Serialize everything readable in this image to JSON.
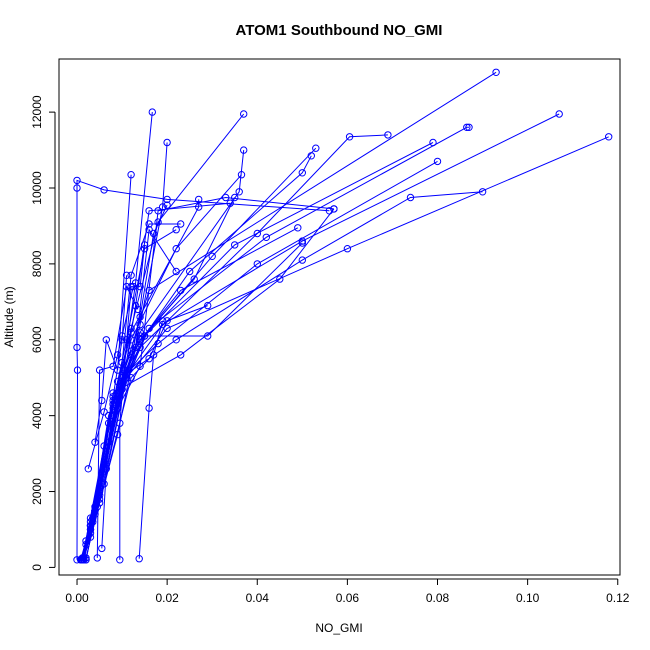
{
  "chart_data": {
    "type": "line",
    "title": "ATOM1 Southbound NO_GMI",
    "xlabel": "NO_GMI",
    "ylabel": "Altitude (m)",
    "xlim": [
      -0.004,
      0.1205
    ],
    "ylim": [
      -200,
      13400
    ],
    "xticks": [
      0.0,
      0.02,
      0.04,
      0.06,
      0.08,
      0.1,
      0.12
    ],
    "xtick_labels": [
      "0.00",
      "0.02",
      "0.04",
      "0.06",
      "0.08",
      "0.10",
      "0.12"
    ],
    "yticks": [
      0,
      2000,
      4000,
      6000,
      8000,
      10000,
      12000
    ],
    "ytick_labels": [
      "0",
      "2000",
      "4000",
      "6000",
      "8000",
      "10000",
      "12000"
    ],
    "grid": false,
    "legend": "none",
    "color": "#0000ff",
    "marker": "open-circle",
    "profiles": [
      {
        "x": [
          0.001,
          0.002,
          0.005,
          0.01,
          0.016,
          0.093
        ],
        "y": [
          200,
          600,
          2100,
          5000,
          7300,
          13050
        ]
      },
      {
        "x": [
          0.001,
          0.003,
          0.009,
          0.014,
          0.019,
          0.02
        ],
        "y": [
          200,
          800,
          3500,
          6400,
          9500,
          11200
        ]
      },
      {
        "x": [
          0.0015,
          0.0035,
          0.008,
          0.012,
          0.018,
          0.037
        ],
        "y": [
          250,
          1200,
          4300,
          6300,
          9100,
          11950
        ]
      },
      {
        "x": [
          0.001,
          0.004,
          0.009,
          0.013,
          0.0167
        ],
        "y": [
          200,
          1500,
          4200,
          7500,
          12000
        ]
      },
      {
        "x": [
          0.002,
          0.005,
          0.01,
          0.014,
          0.036,
          0.037
        ],
        "y": [
          200,
          2000,
          4800,
          6200,
          9900,
          11000
        ]
      },
      {
        "x": [
          0.001,
          0.003,
          0.007,
          0.012,
          0.022,
          0.0365
        ],
        "y": [
          200,
          900,
          3300,
          6000,
          8400,
          10350
        ]
      },
      {
        "x": [
          0.0012,
          0.003,
          0.008,
          0.012,
          0.025,
          0.05,
          0.052
        ],
        "y": [
          250,
          1000,
          4000,
          5600,
          7800,
          10400,
          10850
        ]
      },
      {
        "x": [
          0.0015,
          0.004,
          0.009,
          0.015,
          0.03,
          0.053
        ],
        "y": [
          200,
          1400,
          4500,
          6100,
          8200,
          11050
        ]
      },
      {
        "x": [
          0.001,
          0.0035,
          0.0085,
          0.014,
          0.04,
          0.0605,
          0.069
        ],
        "y": [
          200,
          1300,
          4100,
          5800,
          8800,
          11350,
          11400
        ]
      },
      {
        "x": [
          0.0015,
          0.0045,
          0.009,
          0.015,
          0.035,
          0.079
        ],
        "y": [
          250,
          1600,
          4600,
          6100,
          8500,
          11200
        ]
      },
      {
        "x": [
          0.0012,
          0.004,
          0.01,
          0.016,
          0.042,
          0.0865,
          0.087
        ],
        "y": [
          200,
          1500,
          4700,
          6300,
          8700,
          11600,
          11600
        ]
      },
      {
        "x": [
          0.001,
          0.004,
          0.01,
          0.019,
          0.05,
          0.107
        ],
        "y": [
          200,
          1500,
          4900,
          6400,
          8600,
          11950
        ]
      },
      {
        "x": [
          0.0015,
          0.005,
          0.011,
          0.02,
          0.06,
          0.118
        ],
        "y": [
          200,
          1800,
          5000,
          6300,
          8400,
          11350
        ]
      },
      {
        "x": [
          0.001,
          0.004,
          0.011,
          0.022,
          0.05,
          0.074,
          0.09
        ],
        "y": [
          200,
          1500,
          5100,
          6000,
          8100,
          9750,
          9900
        ]
      },
      {
        "x": [
          0.001,
          0.003,
          0.009,
          0.018,
          0.04,
          0.08
        ],
        "y": [
          200,
          1100,
          4900,
          5900,
          8000,
          10700
        ]
      },
      {
        "x": [
          0.0012,
          0.0035,
          0.008,
          0.023,
          0.045,
          0.057
        ],
        "y": [
          200,
          1300,
          4600,
          5600,
          7600,
          9450
        ]
      },
      {
        "x": [
          0.0008,
          0.003,
          0.008,
          0.014,
          0.029,
          0.05
        ],
        "y": [
          200,
          1100,
          4400,
          6100,
          6100,
          8550
        ]
      },
      {
        "x": [
          0.001,
          0.003,
          0.007,
          0.012,
          0.023,
          0.049
        ],
        "y": [
          200,
          1000,
          4000,
          5700,
          7300,
          8950
        ]
      },
      {
        "x": [
          0.0,
          0.0001,
          0.0,
          0.0,
          0.0,
          0.006,
          0.02,
          0.056
        ],
        "y": [
          200,
          5200,
          5800,
          10000,
          10200,
          9950,
          9700,
          9400
        ]
      },
      {
        "x": [
          0.001,
          0.002,
          0.006,
          0.01,
          0.012,
          0.016,
          0.023
        ],
        "y": [
          200,
          700,
          3200,
          5400,
          7700,
          9050,
          9050
        ]
      },
      {
        "x": [
          0.001,
          0.003,
          0.007,
          0.011,
          0.015,
          0.022
        ],
        "y": [
          200,
          1200,
          3800,
          6000,
          8400,
          8900
        ]
      },
      {
        "x": [
          0.002,
          0.005,
          0.01,
          0.013,
          0.016,
          0.034
        ],
        "y": [
          200,
          1900,
          4700,
          6900,
          9400,
          9600
        ]
      },
      {
        "x": [
          0.0015,
          0.004,
          0.009,
          0.014,
          0.018,
          0.033,
          0.057
        ],
        "y": [
          250,
          1600,
          4200,
          5300,
          9400,
          9750,
          9450
        ]
      },
      {
        "x": [
          0.001,
          0.003,
          0.008,
          0.012,
          0.027,
          0.027
        ],
        "y": [
          200,
          1300,
          4200,
          6200,
          9500,
          9700
        ]
      },
      {
        "x": [
          0.002,
          0.006,
          0.011,
          0.014,
          0.017,
          0.02
        ],
        "y": [
          250,
          2200,
          5000,
          6600,
          8800,
          9550
        ]
      },
      {
        "x": [
          0.001,
          0.003,
          0.008,
          0.014,
          0.026,
          0.035
        ],
        "y": [
          200,
          1100,
          4300,
          6000,
          7600,
          9750
        ]
      },
      {
        "x": [
          0.001,
          0.004,
          0.009,
          0.013,
          0.016,
          0.022
        ],
        "y": [
          200,
          1500,
          4600,
          5800,
          8900,
          7800
        ]
      },
      {
        "x": [
          0.001,
          0.005,
          0.012,
          0.016,
          0.02,
          0.029
        ],
        "y": [
          200,
          1700,
          5000,
          5500,
          6500,
          6900
        ]
      },
      {
        "x": [
          0.0095,
          0.0095,
          0.0105,
          0.012,
          0.014,
          0.015
        ],
        "y": [
          200,
          3800,
          5200,
          7400,
          7400,
          8500
        ]
      },
      {
        "x": [
          0.0138,
          0.016,
          0.017,
          0.019
        ],
        "y": [
          230,
          4200,
          5600,
          6500
        ]
      },
      {
        "x": [
          0.0055,
          0.0065,
          0.008,
          0.01,
          0.011
        ],
        "y": [
          500,
          2600,
          4500,
          6000,
          7700
        ]
      },
      {
        "x": [
          0.0045,
          0.005,
          0.008,
          0.011,
          0.0135
        ],
        "y": [
          250,
          5200,
          5300,
          7400,
          6800
        ]
      },
      {
        "x": [
          0.0025,
          0.006,
          0.009,
          0.01,
          0.0125
        ],
        "y": [
          2600,
          4100,
          5600,
          6100,
          7400
        ]
      },
      {
        "x": [
          0.004,
          0.0055,
          0.0065,
          0.009,
          0.012
        ],
        "y": [
          3300,
          4400,
          6000,
          5200,
          10350
        ]
      }
    ]
  }
}
